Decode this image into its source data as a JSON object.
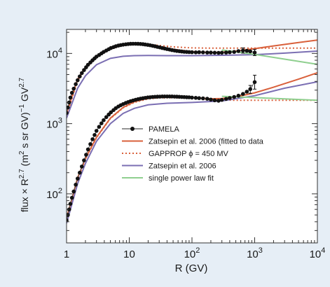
{
  "chart_data": {
    "type": "line",
    "title": "",
    "xlabel": "R (GV)",
    "ylabel": {
      "main": "flux × R",
      "exp1": "2.7",
      "units": " (m",
      "exp2": "2",
      "units2": " s sr GV)",
      "exp3": "−1",
      "units3": " GV",
      "exp4": "2.7"
    },
    "xscale": "log",
    "yscale": "log",
    "xlim": [
      1,
      10000
    ],
    "ylim": [
      20,
      22000
    ],
    "x_ticks": [
      {
        "value": 1,
        "base": "1",
        "exp": ""
      },
      {
        "value": 10,
        "base": "10",
        "exp": ""
      },
      {
        "value": 100,
        "base": "10",
        "exp": "2"
      },
      {
        "value": 1000,
        "base": "10",
        "exp": "3"
      },
      {
        "value": 10000,
        "base": "10",
        "exp": "4"
      }
    ],
    "y_ticks": [
      {
        "value": 100,
        "base": "10",
        "exp": "2"
      },
      {
        "value": 1000,
        "base": "10",
        "exp": "3"
      },
      {
        "value": 10000,
        "base": "10",
        "exp": "4"
      }
    ],
    "legend_position": "center",
    "legend": [
      {
        "label": "PAMELA",
        "style": "marker-line",
        "color": "#555555"
      },
      {
        "label": "Zatsepin et al. 2006 (fitted to data",
        "style": "solid",
        "color": "#d9603b"
      },
      {
        "label": "GAPPROP ϕ = 450 MV",
        "style": "dotted",
        "color": "#d9603b"
      },
      {
        "label": "Zatsepin et al. 2006",
        "style": "solid",
        "color": "#7b6fb3"
      },
      {
        "label": "single power law fit",
        "style": "solid",
        "color": "#8fcf8f"
      }
    ],
    "colors": {
      "background": "#e6eef6",
      "plot_bg": "#ffffff",
      "pamela": "#111111",
      "pamela_line": "#555555",
      "fitted": "#d9603b",
      "gapprop": "#d9603b",
      "zatsepin": "#7b6fb3",
      "powerlaw": "#8fcf8f",
      "axis": "#333333"
    },
    "series": [
      {
        "name": "PAMELA",
        "group": "protons",
        "type": "scatter",
        "x": [
          1.0,
          1.05,
          1.1,
          1.15,
          1.22,
          1.3,
          1.4,
          1.5,
          1.62,
          1.75,
          1.9,
          2.05,
          2.2,
          2.4,
          2.6,
          2.8,
          3.0,
          3.3,
          3.6,
          3.9,
          4.3,
          4.7,
          5.1,
          5.6,
          6.1,
          6.7,
          7.3,
          8.0,
          8.8,
          9.6,
          10.5,
          11.5,
          12.6,
          13.8,
          15.1,
          16.5,
          18.0,
          19.7,
          21.5,
          23.5,
          25.7,
          28.1,
          30.7,
          33.6,
          36.7,
          40.1,
          43.9,
          48.0,
          52.5,
          57.4,
          62.8,
          68.7,
          75.1,
          82.2,
          90.0,
          100,
          115,
          130,
          150,
          175,
          200,
          230,
          265,
          300,
          350,
          400,
          470,
          550,
          650,
          750,
          850,
          1000
        ],
        "y": [
          1420,
          1700,
          2000,
          2350,
          2750,
          3150,
          3650,
          4150,
          4700,
          5250,
          5800,
          6350,
          6900,
          7450,
          8000,
          8500,
          9000,
          9500,
          10000,
          10500,
          11000,
          11500,
          11950,
          12300,
          12650,
          12950,
          13150,
          13350,
          13500,
          13600,
          13700,
          13750,
          13750,
          13700,
          13650,
          13550,
          13400,
          13250,
          13050,
          12850,
          12650,
          12400,
          12200,
          11950,
          11750,
          11550,
          11350,
          11150,
          11000,
          10850,
          10750,
          10650,
          10550,
          10500,
          10450,
          10400,
          10350,
          10400,
          10350,
          10300,
          10300,
          10250,
          10200,
          10250,
          10300,
          10400,
          10500,
          10800,
          11000,
          10900,
          10700,
          10300
        ]
      },
      {
        "name": "PAMELA",
        "group": "helium",
        "type": "scatter",
        "x": [
          1.0,
          1.05,
          1.1,
          1.15,
          1.22,
          1.3,
          1.4,
          1.5,
          1.62,
          1.75,
          1.9,
          2.05,
          2.2,
          2.4,
          2.6,
          2.8,
          3.0,
          3.3,
          3.6,
          3.9,
          4.3,
          4.7,
          5.1,
          5.6,
          6.1,
          6.7,
          7.3,
          8.0,
          8.8,
          9.6,
          10.5,
          11.5,
          12.6,
          13.8,
          15.1,
          16.5,
          18.0,
          19.7,
          21.5,
          23.5,
          25.7,
          28.1,
          30.7,
          33.6,
          36.7,
          40.1,
          43.9,
          48.0,
          52.5,
          57.4,
          62.8,
          68.7,
          75.1,
          82.2,
          90.0,
          100,
          115,
          130,
          150,
          175,
          200,
          230,
          265,
          300,
          350,
          400,
          470,
          550,
          650,
          750,
          850,
          1000
        ],
        "y": [
          42,
          50,
          60,
          72,
          88,
          108,
          135,
          165,
          200,
          245,
          300,
          360,
          430,
          510,
          600,
          690,
          790,
          900,
          1010,
          1120,
          1240,
          1350,
          1450,
          1560,
          1660,
          1750,
          1830,
          1900,
          1970,
          2030,
          2090,
          2140,
          2190,
          2230,
          2270,
          2300,
          2330,
          2360,
          2380,
          2400,
          2410,
          2420,
          2430,
          2440,
          2440,
          2440,
          2440,
          2440,
          2430,
          2420,
          2410,
          2400,
          2390,
          2380,
          2370,
          2350,
          2330,
          2310,
          2290,
          2260,
          2200,
          2150,
          2120,
          2180,
          2250,
          2320,
          2400,
          2500,
          2650,
          2850,
          3100,
          3900
        ]
      },
      {
        "name": "Zatsepin et al. 2006 (fitted to data",
        "group": "protons",
        "x": [
          1,
          1.5,
          2,
          3,
          5,
          8,
          12,
          15,
          20,
          30,
          50,
          100,
          200,
          300,
          500,
          1000,
          2000,
          5000,
          10000
        ],
        "y": [
          1400,
          4300,
          6300,
          9000,
          11800,
          13200,
          13700,
          13750,
          13500,
          12500,
          11500,
          10600,
          10300,
          10400,
          10800,
          11700,
          12800,
          14300,
          15500
        ]
      },
      {
        "name": "GAPPROP ϕ = 450 MV",
        "group": "protons",
        "x": [
          1,
          1.5,
          2,
          3,
          5,
          8,
          12,
          15,
          20,
          30,
          50,
          100,
          200,
          500,
          1000,
          2000,
          5000,
          10000
        ],
        "y": [
          1300,
          4100,
          6100,
          8800,
          11600,
          13000,
          13500,
          13550,
          13450,
          13000,
          12400,
          12000,
          11900,
          11900,
          11900,
          11900,
          11900,
          11900
        ]
      },
      {
        "name": "Zatsepin et al. 2006",
        "group": "protons",
        "x": [
          1,
          1.5,
          2,
          3,
          5,
          8,
          12,
          20,
          40,
          100,
          300,
          1000,
          3000,
          10000
        ],
        "y": [
          1200,
          3200,
          4800,
          6900,
          8500,
          9100,
          9300,
          9350,
          9300,
          9300,
          9400,
          9600,
          10100,
          10800
        ]
      },
      {
        "name": "single power law fit",
        "group": "protons",
        "x": [
          300,
          1000,
          3000,
          10000
        ],
        "y": [
          11200,
          9700,
          8300,
          7000
        ]
      },
      {
        "name": "Zatsepin et al. 2006 (fitted to data",
        "group": "helium",
        "x": [
          1,
          1.5,
          2,
          3,
          5,
          8,
          12,
          20,
          30,
          50,
          100,
          200,
          300,
          500,
          1000,
          2000,
          5000,
          10000
        ],
        "y": [
          45,
          170,
          320,
          640,
          1200,
          1700,
          2050,
          2300,
          2400,
          2420,
          2350,
          2260,
          2280,
          2400,
          2750,
          3300,
          4300,
          5300
        ]
      },
      {
        "name": "GAPPROP ϕ = 450 MV",
        "group": "helium",
        "x": [
          1,
          1.5,
          2,
          3,
          5,
          8,
          12,
          20,
          30,
          50,
          100,
          200,
          500,
          1000,
          2000,
          5000,
          10000
        ],
        "y": [
          40,
          160,
          310,
          630,
          1180,
          1680,
          2000,
          2250,
          2330,
          2340,
          2300,
          2200,
          2150,
          2150,
          2150,
          2150,
          2150
        ]
      },
      {
        "name": "Zatsepin et al. 2006",
        "group": "helium",
        "x": [
          1,
          1.5,
          2,
          3,
          5,
          8,
          12,
          20,
          40,
          100,
          300,
          1000,
          3000,
          10000
        ],
        "y": [
          38,
          140,
          270,
          560,
          1000,
          1400,
          1650,
          1850,
          1950,
          2000,
          2100,
          2500,
          3200,
          3950
        ]
      },
      {
        "name": "single power law fit",
        "group": "helium",
        "x": [
          300,
          1000,
          3000,
          10000
        ],
        "y": [
          2450,
          2350,
          2250,
          2150
        ]
      }
    ],
    "error_bars": [
      {
        "group": "protons",
        "x": 650,
        "y": 11000,
        "low": 10100,
        "high": 12000
      },
      {
        "group": "protons",
        "x": 1000,
        "y": 10300,
        "low": 9300,
        "high": 11400
      },
      {
        "group": "helium",
        "x": 850,
        "y": 3100,
        "low": 2700,
        "high": 3500
      },
      {
        "group": "helium",
        "x": 1000,
        "y": 3900,
        "low": 3100,
        "high": 4900
      }
    ]
  }
}
